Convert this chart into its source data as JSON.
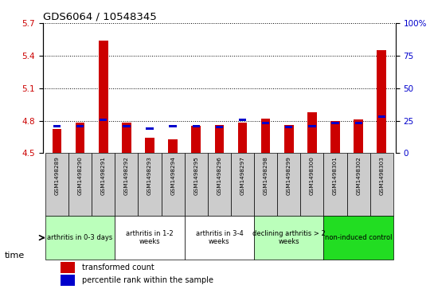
{
  "title": "GDS6064 / 10548345",
  "samples": [
    "GSM1498289",
    "GSM1498290",
    "GSM1498291",
    "GSM1498292",
    "GSM1498293",
    "GSM1498294",
    "GSM1498295",
    "GSM1498296",
    "GSM1498297",
    "GSM1498298",
    "GSM1498299",
    "GSM1498300",
    "GSM1498301",
    "GSM1498302",
    "GSM1498303"
  ],
  "transformed_count": [
    4.72,
    4.78,
    5.54,
    4.78,
    4.64,
    4.63,
    4.75,
    4.76,
    4.78,
    4.82,
    4.76,
    4.88,
    4.8,
    4.81,
    5.45
  ],
  "percentile_rank": [
    20,
    20,
    25,
    20,
    18,
    20,
    20,
    19,
    25,
    22,
    19,
    20,
    22,
    22,
    27
  ],
  "ylim_left": [
    4.5,
    5.7
  ],
  "ylim_right": [
    0,
    100
  ],
  "yticks_left": [
    4.5,
    4.8,
    5.1,
    5.4,
    5.7
  ],
  "yticks_right": [
    0,
    25,
    50,
    75,
    100
  ],
  "ytick_labels_right": [
    "0",
    "25",
    "50",
    "75",
    "100%"
  ],
  "groups": [
    {
      "label": "arthritis in 0-3 days",
      "start": 0,
      "end": 3,
      "color": "#bbffbb"
    },
    {
      "label": "arthritis in 1-2\nweeks",
      "start": 3,
      "end": 6,
      "color": "#ffffff"
    },
    {
      "label": "arthritis in 3-4\nweeks",
      "start": 6,
      "end": 9,
      "color": "#ffffff"
    },
    {
      "label": "declining arthritis > 2\nweeks",
      "start": 9,
      "end": 12,
      "color": "#bbffbb"
    },
    {
      "label": "non-induced control",
      "start": 12,
      "end": 15,
      "color": "#22dd22"
    }
  ],
  "bar_color_red": "#cc0000",
  "bar_color_blue": "#0000cc",
  "bar_width": 0.4,
  "baseline": 4.5,
  "grid_linestyle": "dotted",
  "bg_color": "#ffffff",
  "tick_label_color_left": "#cc0000",
  "tick_label_color_right": "#0000cc",
  "sample_box_color": "#cccccc",
  "time_label": "time"
}
